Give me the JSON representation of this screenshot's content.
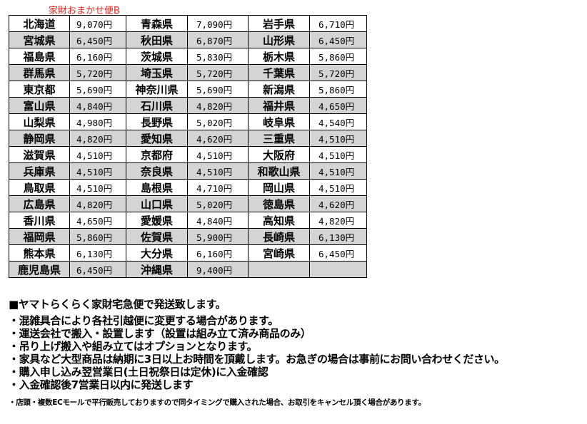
{
  "title": "家財おまかせ便B",
  "rows": [
    [
      [
        "北海道",
        "9,070円"
      ],
      [
        "青森県",
        "7,090円"
      ],
      [
        "岩手県",
        "6,710円"
      ]
    ],
    [
      [
        "宮城県",
        "6,450円"
      ],
      [
        "秋田県",
        "6,870円"
      ],
      [
        "山形県",
        "6,450円"
      ]
    ],
    [
      [
        "福島県",
        "6,160円"
      ],
      [
        "茨城県",
        "5,830円"
      ],
      [
        "栃木県",
        "5,860円"
      ]
    ],
    [
      [
        "群馬県",
        "5,720円"
      ],
      [
        "埼玉県",
        "5,720円"
      ],
      [
        "千葉県",
        "5,720円"
      ]
    ],
    [
      [
        "東京都",
        "5,690円"
      ],
      [
        "神奈川県",
        "5,690円"
      ],
      [
        "新潟県",
        "5,860円"
      ]
    ],
    [
      [
        "富山県",
        "4,840円"
      ],
      [
        "石川県",
        "4,820円"
      ],
      [
        "福井県",
        "4,650円"
      ]
    ],
    [
      [
        "山梨県",
        "4,980円"
      ],
      [
        "長野県",
        "5,020円"
      ],
      [
        "岐阜県",
        "4,540円"
      ]
    ],
    [
      [
        "静岡県",
        "4,820円"
      ],
      [
        "愛知県",
        "4,620円"
      ],
      [
        "三重県",
        "4,510円"
      ]
    ],
    [
      [
        "滋賀県",
        "4,510円"
      ],
      [
        "京都府",
        "4,510円"
      ],
      [
        "大阪府",
        "4,510円"
      ]
    ],
    [
      [
        "兵庫県",
        "4,510円"
      ],
      [
        "奈良県",
        "4,510円"
      ],
      [
        "和歌山県",
        "4,510円"
      ]
    ],
    [
      [
        "鳥取県",
        "4,510円"
      ],
      [
        "島根県",
        "4,710円"
      ],
      [
        "岡山県",
        "4,510円"
      ]
    ],
    [
      [
        "広島県",
        "4,820円"
      ],
      [
        "山口県",
        "5,020円"
      ],
      [
        "徳島県",
        "4,620円"
      ]
    ],
    [
      [
        "香川県",
        "4,650円"
      ],
      [
        "愛媛県",
        "4,840円"
      ],
      [
        "高知県",
        "4,820円"
      ]
    ],
    [
      [
        "福岡県",
        "5,860円"
      ],
      [
        "佐賀県",
        "5,900円"
      ],
      [
        "長崎県",
        "6,130円"
      ]
    ],
    [
      [
        "熊本県",
        "6,130円"
      ],
      [
        "大分県",
        "6,160円"
      ],
      [
        "宮崎県",
        "6,450円"
      ]
    ],
    [
      [
        "鹿児島県",
        "6,450円"
      ],
      [
        "沖縄県",
        "9,400円"
      ],
      [
        "",
        ""
      ]
    ]
  ],
  "notes": {
    "heading": "■ヤマトらくらく家財宅急便で発送致します。",
    "items": [
      "・混雑具合により各社引越便に変更する場合があります。",
      "・運送会社で搬入・設置します（設置は組み立て済み商品のみ）",
      "・吊り上げ搬入や組み立てはオプションとなります。",
      "・家具など大型商品は納期に3日以上お時間を頂戴します。お急ぎの場合は事前にお問い合わせください。",
      "・購入申し込み翌営業日(土日祝祭日は定休)に入金確認",
      "・入金確認後7営業日以内に発送します"
    ],
    "small": "・店頭・複数ECモールで平行販売しておりますので同タイミングで購入された場合、お取引をキャンセル頂く場合があります。"
  }
}
